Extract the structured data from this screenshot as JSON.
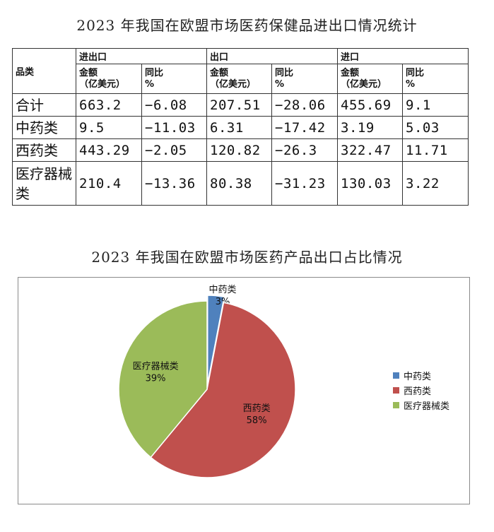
{
  "title_table": "2023 年我国在欧盟市场医药保健品进出口情况统计",
  "title_chart": "2023 年我国在欧盟市场医药产品出口占比情况",
  "table": {
    "row_header": "品类",
    "groups": [
      "进出口",
      "出口",
      "进口"
    ],
    "sub_headers": [
      "金额\n（亿美元）",
      "同比\n%"
    ],
    "rows": [
      {
        "label": "合计",
        "values": [
          "663.2",
          "-6.08",
          "207.51",
          "-28.06",
          "455.69",
          "9.1"
        ]
      },
      {
        "label": "中药类",
        "values": [
          "9.5",
          "-11.03",
          "6.31",
          "-17.42",
          "3.19",
          "5.03"
        ]
      },
      {
        "label": "西药类",
        "values": [
          "443.29",
          "-2.05",
          "120.82",
          "-26.3",
          "322.47",
          "11.71"
        ]
      },
      {
        "label": "医疗器械类",
        "values": [
          "210.4",
          "-13.36",
          "80.38",
          "-31.23",
          "130.03",
          "3.22"
        ]
      }
    ]
  },
  "chart_data": {
    "type": "pie",
    "title": "2023 年我国在欧盟市场医药产品出口占比情况",
    "slices": [
      {
        "name": "中药类",
        "value": 3,
        "label": "3%",
        "color": "#4f81bd"
      },
      {
        "name": "西药类",
        "value": 58,
        "label": "58%",
        "color": "#c0504d"
      },
      {
        "name": "医疗器械类",
        "value": 39,
        "label": "39%",
        "color": "#9bbb59"
      }
    ],
    "legend_position": "right"
  }
}
